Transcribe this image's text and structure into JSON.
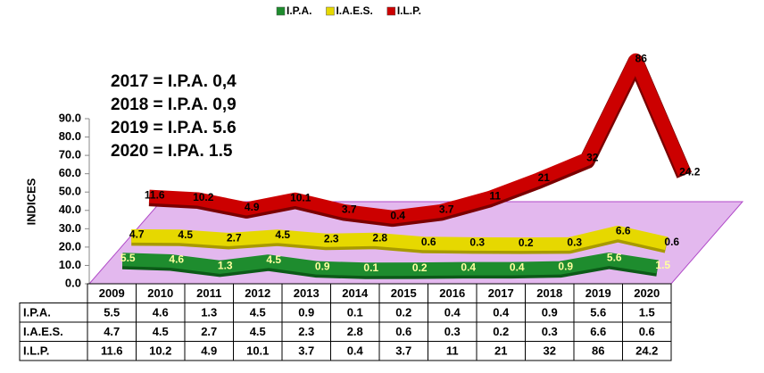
{
  "chart_data": {
    "type": "line",
    "y_label": "INDICES",
    "annotations": [
      "2017 = I.P.A.  0,4",
      "2018 = I.P.A.  0,9",
      "2019 = I.P.A.  5.6",
      "2020 = I.PA.   1.5"
    ],
    "categories": [
      "2009",
      "2010",
      "2011",
      "2012",
      "2013",
      "2014",
      "2015",
      "2016",
      "2017",
      "2018",
      "2019",
      "2020"
    ],
    "series": [
      {
        "name": "I.P.A.",
        "color": "#1e8c2e",
        "values": [
          5.5,
          4.6,
          1.3,
          4.5,
          0.9,
          0.1,
          0.2,
          0.4,
          0.4,
          0.9,
          5.6,
          1.5
        ]
      },
      {
        "name": "I.A.E.S.",
        "color": "#e6d800",
        "values": [
          4.7,
          4.5,
          2.7,
          4.5,
          2.3,
          2.8,
          0.6,
          0.3,
          0.2,
          0.3,
          6.6,
          0.6
        ]
      },
      {
        "name": "I.L.P.",
        "color": "#cc0000",
        "values": [
          11.6,
          10.2,
          4.9,
          10.1,
          3.7,
          0.4,
          3.7,
          11,
          21,
          32,
          86,
          24.2
        ]
      }
    ],
    "ylim": [
      0,
      90
    ],
    "yticks": [
      {
        "value": 0,
        "label": "0.0"
      },
      {
        "value": 10,
        "label": "10.0"
      },
      {
        "value": 20,
        "label": "20.0"
      },
      {
        "value": 30,
        "label": "30.0"
      },
      {
        "value": 40,
        "label": "40.0"
      },
      {
        "value": 50,
        "label": "50.0"
      },
      {
        "value": 60,
        "label": "60.0"
      },
      {
        "value": 70,
        "label": "70.0"
      },
      {
        "value": 80,
        "label": "80.0"
      },
      {
        "value": 90,
        "label": "90.0"
      }
    ],
    "legend": "top"
  }
}
